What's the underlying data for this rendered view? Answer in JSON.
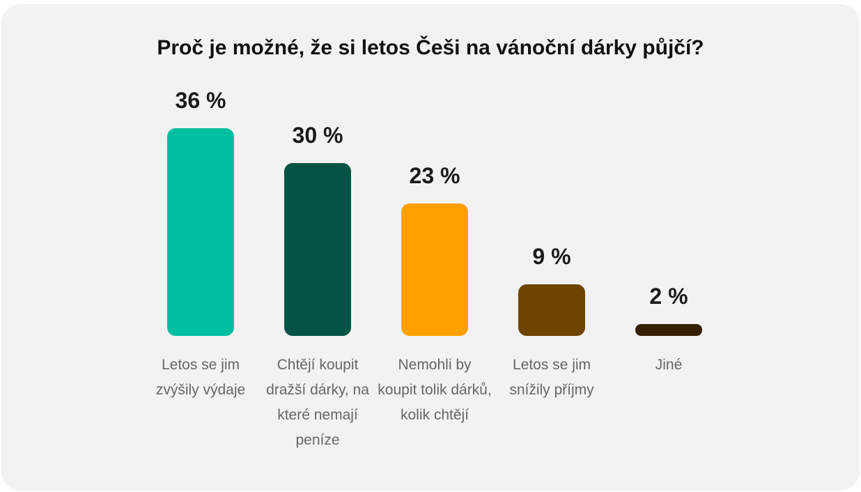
{
  "chart_data": {
    "type": "bar",
    "title": "Proč je možné, že si letos Češi na vánoční dárky půjčí?",
    "categories": [
      "Letos se jim zvýšily výdaje",
      "Chtějí koupit dražší dárky, na které nemají peníze",
      "Nemohli by koupit tolik dárků, kolik chtějí",
      "Letos se jim snížily příjmy",
      "Jiné"
    ],
    "values": [
      36,
      30,
      23,
      9,
      2
    ],
    "value_labels": [
      "36 %",
      "30 %",
      "23 %",
      "9 %",
      "2 %"
    ],
    "colors": [
      "#00bfa0",
      "#035444",
      "#ffa000",
      "#6e4500",
      "#352000"
    ]
  }
}
